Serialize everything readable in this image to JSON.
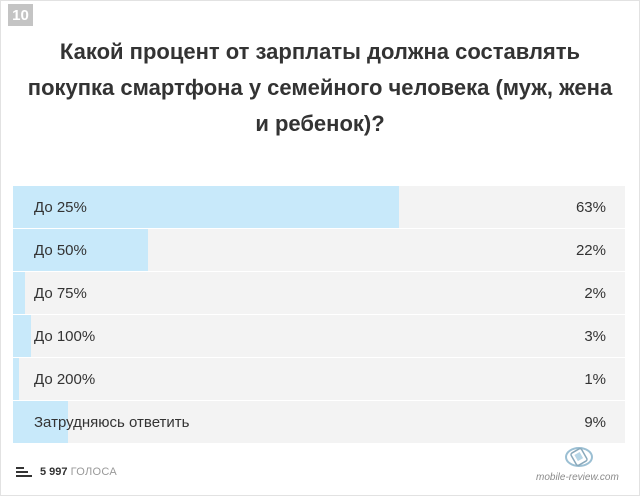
{
  "badge": "10",
  "question": "Какой процент от зарплаты должна составлять покупка смартфона у семейного человека (муж, жена и ребенок)?",
  "chart_data": {
    "type": "bar",
    "orientation": "horizontal",
    "categories": [
      "До 25%",
      "До 50%",
      "До 75%",
      "До 100%",
      "До 200%",
      "Затрудняюсь ответить"
    ],
    "values": [
      63,
      22,
      2,
      3,
      1,
      9
    ],
    "value_labels": [
      "63%",
      "22%",
      "2%",
      "3%",
      "1%",
      "9%"
    ],
    "xlim": [
      0,
      100
    ],
    "grid": false,
    "bar_color": "#c8e9fa",
    "track_color": "#f3f3f3"
  },
  "footer": {
    "votes_count": "5 997",
    "votes_label": "ГОЛОСА"
  },
  "watermark": "mobile-review.com",
  "icons": {
    "menu": "bars-icon",
    "logo": "mobile-review-logo-icon"
  }
}
